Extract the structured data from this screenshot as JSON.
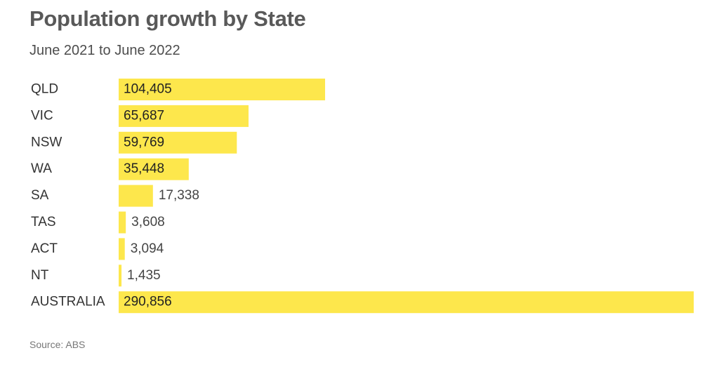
{
  "chart_data": {
    "type": "bar",
    "orientation": "horizontal",
    "title": "Population growth by State",
    "subtitle": "June 2021 to June 2022",
    "categories": [
      "QLD",
      "VIC",
      "NSW",
      "WA",
      "SA",
      "TAS",
      "ACT",
      "NT",
      "AUSTRALIA"
    ],
    "values": [
      104405,
      65687,
      59769,
      35448,
      17338,
      3608,
      3094,
      1435,
      290856
    ],
    "value_labels": [
      "104,405",
      "65,687",
      "59,769",
      "35,448",
      "17,338",
      "3,608",
      "3,094",
      "1,435",
      "290,856"
    ],
    "xlim": [
      0,
      290856
    ],
    "grid": false,
    "legend": "none",
    "xlabel": "",
    "ylabel": "",
    "bar_color": "#fde74c",
    "source": "Source: ABS"
  }
}
